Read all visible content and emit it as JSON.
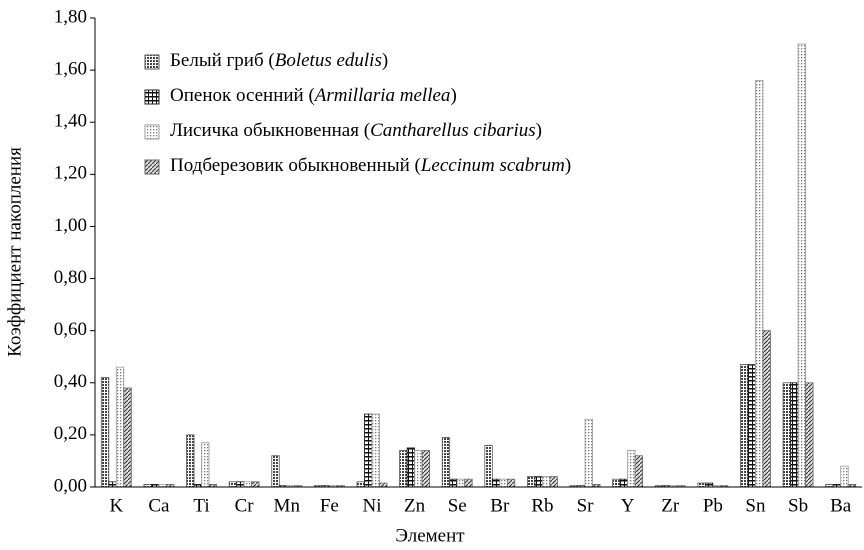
{
  "chart_data": {
    "type": "bar",
    "xlabel": "Элемент",
    "ylabel": "Коэффициент накопления",
    "categories": [
      "K",
      "Ca",
      "Ti",
      "Cr",
      "Mn",
      "Fe",
      "Ni",
      "Zn",
      "Se",
      "Br",
      "Rb",
      "Sr",
      "Y",
      "Zr",
      "Pb",
      "Sn",
      "Sb",
      "Ba"
    ],
    "series": [
      {
        "name": "Белый гриб (Boletus edulis)",
        "color": "#555555",
        "values": [
          0.42,
          0.01,
          0.2,
          0.02,
          0.12,
          0.005,
          0.02,
          0.14,
          0.19,
          0.16,
          0.04,
          0.005,
          0.03,
          0.005,
          0.015,
          0.47,
          0.4,
          0.01
        ]
      },
      {
        "name": "Опенок осенний (Armillaria mellea)",
        "color": "#222222",
        "values": [
          0.02,
          0.01,
          0.01,
          0.02,
          0.005,
          0.005,
          0.28,
          0.15,
          0.03,
          0.03,
          0.04,
          0.005,
          0.03,
          0.005,
          0.015,
          0.47,
          0.4,
          0.01
        ]
      },
      {
        "name": "Лисичка обыкновенная (Cantharellus cibarius)",
        "color": "#999999",
        "values": [
          0.46,
          0.01,
          0.17,
          0.02,
          0.005,
          0.005,
          0.28,
          0.14,
          0.03,
          0.03,
          0.04,
          0.26,
          0.14,
          0.005,
          0.005,
          1.56,
          1.7,
          0.08
        ]
      },
      {
        "name": "Подберезовик обыкновенный (Leccinum scabrum)",
        "color": "#666666",
        "values": [
          0.38,
          0.01,
          0.01,
          0.02,
          0.005,
          0.005,
          0.015,
          0.14,
          0.03,
          0.03,
          0.04,
          0.01,
          0.12,
          0.005,
          0.005,
          0.6,
          0.4,
          0.01
        ]
      }
    ],
    "ylim": [
      0,
      1.8
    ],
    "yticks": [
      {
        "value": 0,
        "label": "0,00"
      },
      {
        "value": 0.2,
        "label": "0,20"
      },
      {
        "value": 0.4,
        "label": "0,40"
      },
      {
        "value": 0.6,
        "label": "0,60"
      },
      {
        "value": 0.8,
        "label": "0,80"
      },
      {
        "value": 1.0,
        "label": "1,00"
      },
      {
        "value": 1.2,
        "label": "1,20"
      },
      {
        "value": 1.4,
        "label": "1,40"
      },
      {
        "value": 1.6,
        "label": "1,60"
      },
      {
        "value": 1.8,
        "label": "1,80"
      }
    ]
  }
}
